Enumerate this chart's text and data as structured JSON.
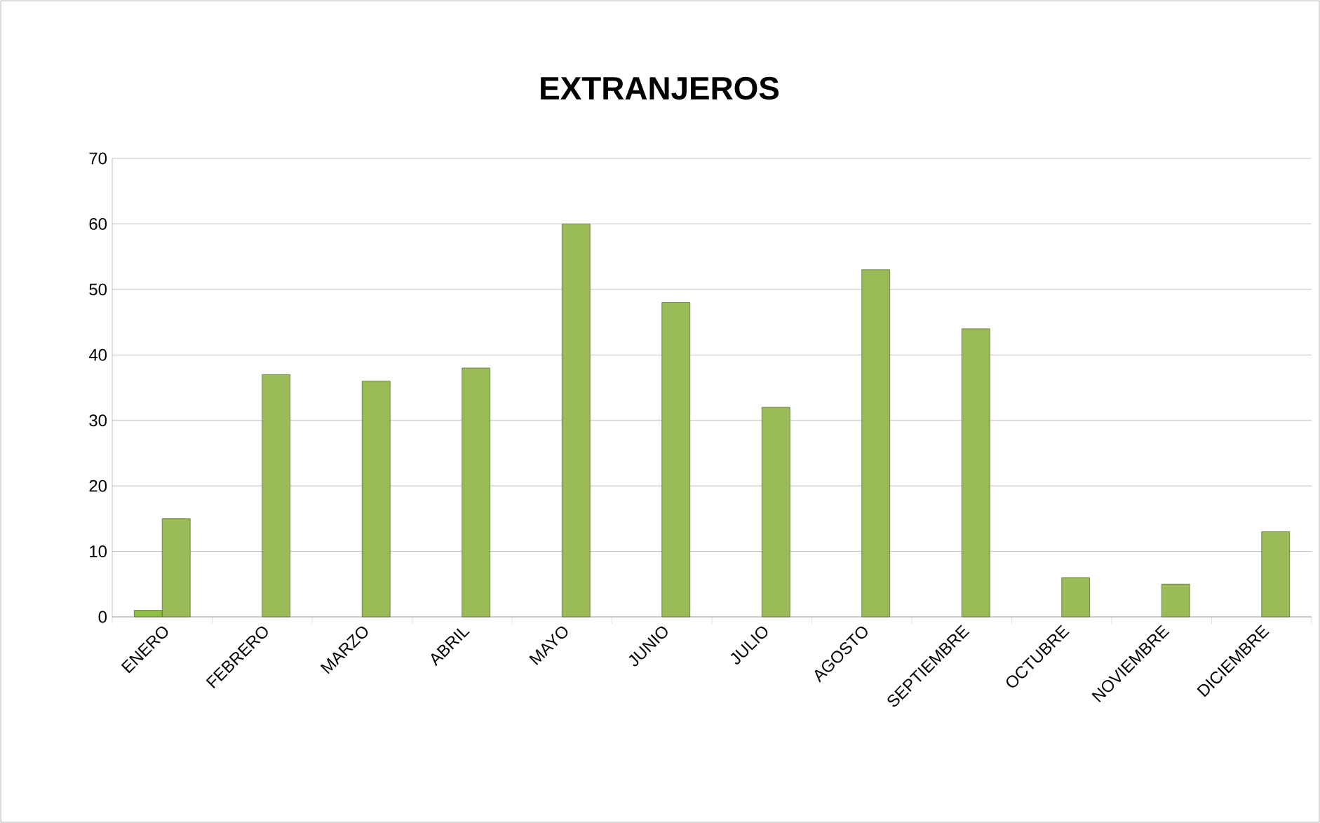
{
  "chart_data": {
    "type": "bar",
    "title": "EXTRANJEROS",
    "categories": [
      "ENERO",
      "FEBRERO",
      "MARZO",
      "ABRIL",
      "MAYO",
      "JUNIO",
      "JULIO",
      "AGOSTO",
      "SEPTIEMBRE",
      "OCTUBRE",
      "NOVIEMBRE",
      "DICIEMBRE"
    ],
    "series": [
      {
        "color": "#8fbf45",
        "values": [
          1,
          null,
          null,
          null,
          null,
          null,
          null,
          null,
          null,
          null,
          null,
          null
        ]
      },
      {
        "color": "#9bbb59",
        "values": [
          15,
          37,
          36,
          38,
          60,
          48,
          32,
          53,
          44,
          6,
          5,
          13
        ]
      }
    ],
    "ylim": [
      0,
      70
    ],
    "yticks": [
      0,
      10,
      20,
      30,
      40,
      50,
      60,
      70
    ],
    "grid": "y"
  }
}
